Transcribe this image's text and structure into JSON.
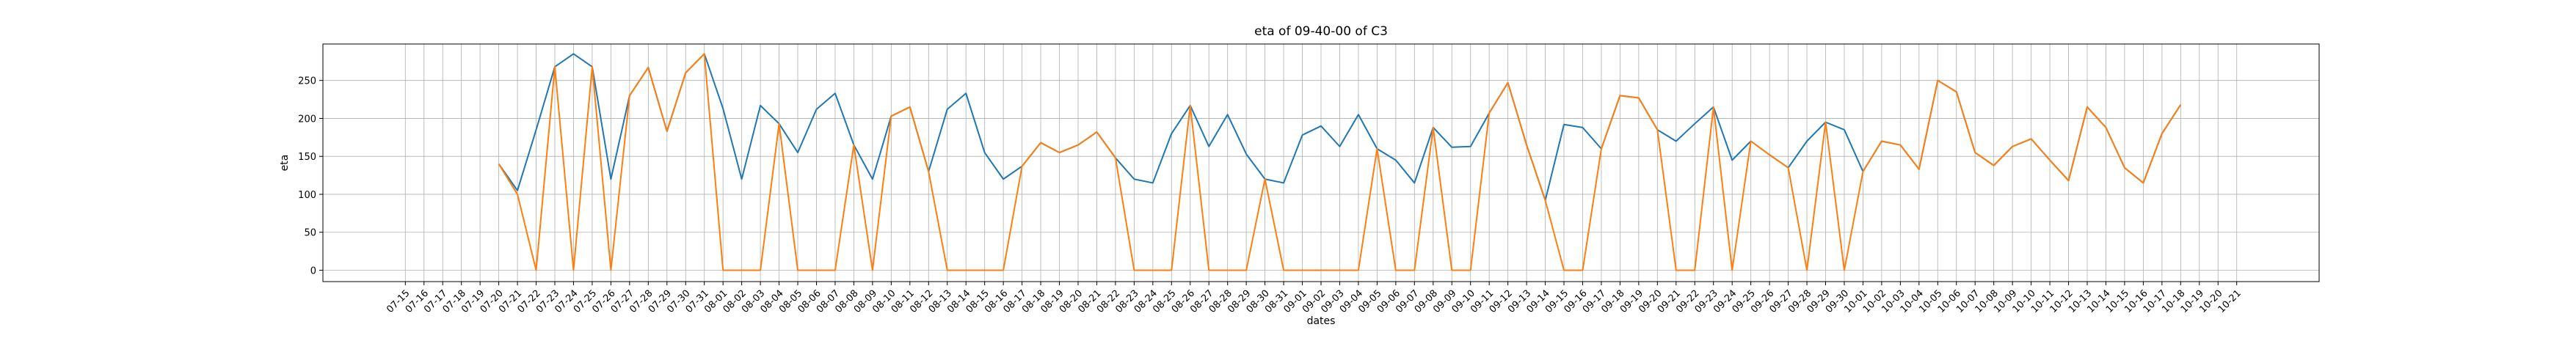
{
  "chart_data": {
    "type": "line",
    "title": "eta of 09-40-00 of C3",
    "xlabel": "dates",
    "ylabel": "eta",
    "ylim": [
      -15,
      298
    ],
    "yticks": [
      0,
      50,
      100,
      150,
      200,
      250
    ],
    "grid": true,
    "categories": [
      "07-15",
      "07-16",
      "07-17",
      "07-18",
      "07-19",
      "07-20",
      "07-21",
      "07-22",
      "07-23",
      "07-24",
      "07-25",
      "07-26",
      "07-27",
      "07-28",
      "07-29",
      "07-30",
      "07-31",
      "08-01",
      "08-02",
      "08-03",
      "08-04",
      "08-05",
      "08-06",
      "08-07",
      "08-08",
      "08-09",
      "08-10",
      "08-11",
      "08-12",
      "08-13",
      "08-14",
      "08-15",
      "08-16",
      "08-17",
      "08-18",
      "08-19",
      "08-20",
      "08-21",
      "08-22",
      "08-23",
      "08-24",
      "08-25",
      "08-26",
      "08-27",
      "08-28",
      "08-29",
      "08-30",
      "08-31",
      "09-01",
      "09-02",
      "09-03",
      "09-04",
      "09-05",
      "09-06",
      "09-07",
      "09-08",
      "09-09",
      "09-10",
      "09-11",
      "09-12",
      "09-13",
      "09-14",
      "09-15",
      "09-16",
      "09-17",
      "09-18",
      "09-19",
      "09-20",
      "09-21",
      "09-22",
      "09-23",
      "09-24",
      "09-25",
      "09-26",
      "09-27",
      "09-28",
      "09-29",
      "09-30",
      "10-01",
      "10-02",
      "10-03",
      "10-04",
      "10-05",
      "10-06",
      "10-07",
      "10-08",
      "10-09",
      "10-10",
      "10-11",
      "10-12",
      "10-13",
      "10-14",
      "10-15",
      "10-16",
      "10-17",
      "10-18",
      "10-19",
      "10-20",
      "10-21"
    ],
    "series": [
      {
        "color": "#1f77b4",
        "values": [
          null,
          null,
          null,
          null,
          null,
          140,
          105,
          185,
          268,
          285,
          268,
          120,
          230,
          267,
          183,
          260,
          285,
          213,
          120,
          217,
          193,
          155,
          212,
          233,
          165,
          120,
          203,
          215,
          130,
          212,
          233,
          155,
          120,
          137,
          168,
          155,
          165,
          182,
          148,
          120,
          115,
          180,
          217,
          163,
          205,
          153,
          120,
          115,
          178,
          190,
          163,
          205,
          160,
          145,
          115,
          188,
          162,
          163,
          207,
          247,
          165,
          92,
          192,
          188,
          160,
          230,
          227,
          185,
          170,
          193,
          215,
          145,
          170,
          152,
          135,
          170,
          195,
          185,
          130,
          170,
          165,
          133,
          250,
          235,
          155,
          138,
          163,
          173,
          145,
          118,
          215,
          188,
          135,
          115,
          180,
          218,
          null,
          null,
          null
        ]
      },
      {
        "color": "#ff7f0e",
        "values": [
          null,
          null,
          null,
          null,
          null,
          140,
          100,
          0,
          268,
          0,
          268,
          0,
          230,
          267,
          183,
          260,
          285,
          0,
          0,
          0,
          193,
          0,
          0,
          0,
          165,
          0,
          203,
          215,
          130,
          0,
          0,
          0,
          0,
          137,
          168,
          155,
          165,
          182,
          148,
          0,
          0,
          0,
          217,
          0,
          0,
          0,
          120,
          0,
          0,
          0,
          0,
          0,
          160,
          0,
          0,
          188,
          0,
          0,
          207,
          247,
          165,
          92,
          0,
          0,
          160,
          230,
          227,
          185,
          0,
          0,
          215,
          0,
          170,
          152,
          135,
          0,
          195,
          0,
          130,
          170,
          165,
          133,
          250,
          235,
          155,
          138,
          163,
          173,
          145,
          118,
          215,
          188,
          135,
          115,
          180,
          218,
          null,
          null,
          null
        ]
      }
    ]
  }
}
